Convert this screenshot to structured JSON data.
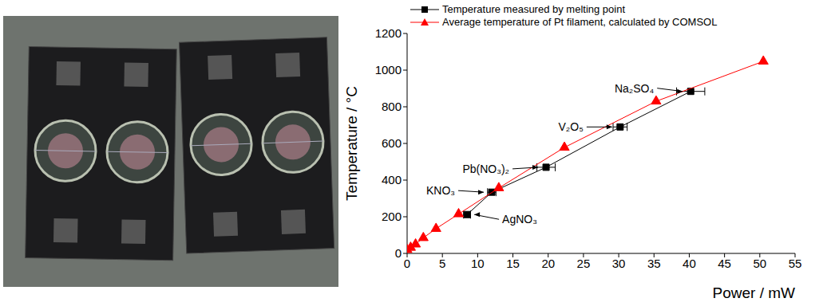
{
  "chart_data": {
    "type": "scatter",
    "x_label": "Power / mW",
    "y_label": "Temperature / °C",
    "xlim": [
      0,
      55
    ],
    "xticks": [
      0,
      5,
      10,
      15,
      20,
      25,
      30,
      35,
      40,
      45,
      50,
      55
    ],
    "ylim": [
      0,
      1200
    ],
    "yticks": [
      0,
      200,
      400,
      600,
      800,
      1000,
      1200
    ],
    "legend": "top-left",
    "grid": false,
    "series": [
      {
        "name": "Temperature measured by melting point",
        "color": "#000000",
        "marker": "square",
        "line_style": "solid",
        "x": [
          8.5,
          12,
          19.7,
          30.2,
          40.2
        ],
        "values": [
          212,
          334,
          470,
          690,
          884
        ],
        "x_error": [
          0.5,
          0.6,
          1.3,
          1.0,
          2.0
        ]
      },
      {
        "name": "Average temperature of Pt filament, calculated by COMSOL",
        "color": "#ff0000",
        "marker": "triangle",
        "line_style": "solid",
        "x": [
          0,
          0.5,
          1.2,
          2.3,
          4.1,
          7.3,
          13,
          22.3,
          35.3,
          50.5
        ],
        "values": [
          20,
          32,
          50,
          85,
          135,
          215,
          357,
          578,
          830,
          1048
        ]
      }
    ],
    "annotations": [
      {
        "text": "AgNO₃",
        "x": 8.5,
        "y": 212
      },
      {
        "text": "KNO₃",
        "x": 12,
        "y": 334
      },
      {
        "text": "Pb(NO₃)₂",
        "x": 19.7,
        "y": 470
      },
      {
        "text": "V₂O₅",
        "x": 30.2,
        "y": 690
      },
      {
        "text": "Na₂SO₄",
        "x": 40.2,
        "y": 884
      }
    ]
  }
}
